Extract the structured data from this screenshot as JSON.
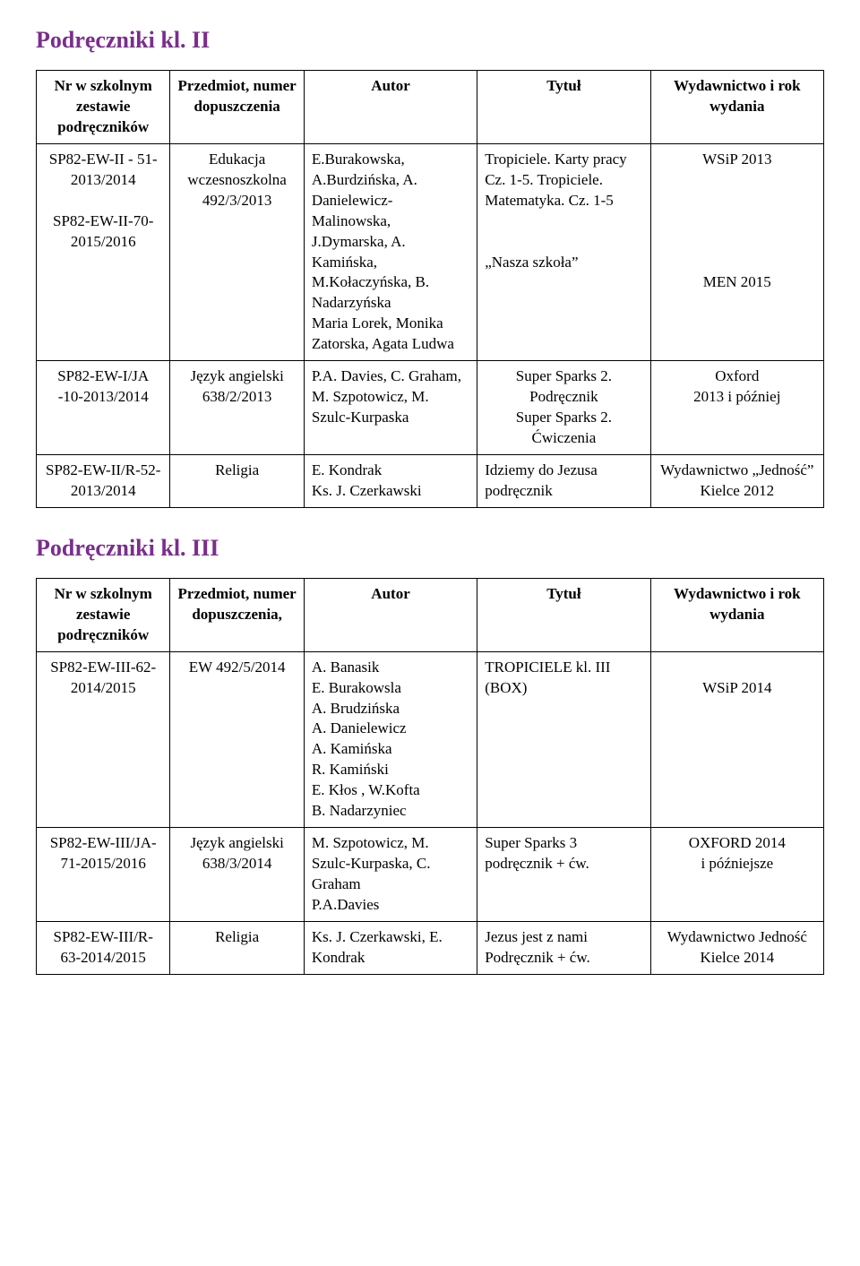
{
  "sections": [
    {
      "title": "Podręczniki kl. II",
      "headers": {
        "nr": "Nr w szkolnym zestawie podręczników",
        "przedmiot": "Przedmiot, numer dopuszczenia",
        "autor": "Autor",
        "tytul": "Tytuł",
        "wyd": "Wydawnictwo i rok wydania"
      },
      "rows": [
        {
          "nr": "SP82-EW-II - 51-2013/2014\n\nSP82-EW-II-70-2015/2016",
          "przedmiot": "Edukacja wczesnoszkolna 492/3/2013",
          "autor": "E.Burakowska, A.Burdzińska, A. Danielewicz-Malinowska, J.Dymarska, A. Kamińska, M.Kołaczyńska, B. Nadarzyńska\nMaria Lorek, Monika Zatorska, Agata Ludwa",
          "tytul": "Tropiciele. Karty pracy Cz. 1-5. Tropiciele. Matematyka. Cz. 1-5\n\n\n„Nasza szkoła”",
          "wyd": "WSiP 2013\n\n\n\n\n\nMEN 2015",
          "center_przed": true,
          "center_tytul_partial": false,
          "center_wyd": true
        },
        {
          "nr": "SP82-EW-I/JA -10-2013/2014",
          "przedmiot": "Język angielski 638/2/2013",
          "autor": "P.A. Davies, C. Graham, M. Szpotowicz, M. Szulc-Kurpaska",
          "tytul": "Super Sparks 2. Podręcznik\nSuper Sparks 2. Ćwiczenia",
          "wyd": "Oxford\n2013 i później",
          "center_przed": true,
          "center_tytul": true,
          "center_wyd": true
        },
        {
          "nr": "SP82-EW-II/R-52-2013/2014",
          "przedmiot": "Religia",
          "autor": "E. Kondrak\nKs. J. Czerkawski",
          "tytul": "Idziemy do Jezusa podręcznik",
          "wyd": "Wydawnictwo „Jedność” Kielce 2012",
          "center_przed": true,
          "center_wyd": true
        }
      ]
    },
    {
      "title": "Podręczniki kl. III",
      "headers": {
        "nr": "Nr w szkolnym zestawie podręczników",
        "przedmiot": "Przedmiot, numer dopuszczenia,",
        "autor": "Autor",
        "tytul": "Tytuł",
        "wyd": "Wydawnictwo i rok wydania"
      },
      "rows": [
        {
          "nr": "SP82-EW-III-62-2014/2015",
          "przedmiot": "EW 492/5/2014",
          "autor": "A. Banasik\nE. Burakowsla\nA. Brudzińska\nA. Danielewicz\nA. Kamińska\nR. Kamiński\nE. Kłos , W.Kofta\nB. Nadarzyniec",
          "tytul": "TROPICIELE  kl. III (BOX)",
          "wyd": "\nWSiP 2014",
          "center_przed": true,
          "center_wyd": true
        },
        {
          "nr": "SP82-EW-III/JA-71-2015/2016",
          "przedmiot": "Język angielski 638/3/2014",
          "autor": "M. Szpotowicz, M. Szulc-Kurpaska, C. Graham\nP.A.Davies",
          "tytul": "Super Sparks 3 podręcznik + ćw.",
          "wyd": "OXFORD 2014\ni późniejsze",
          "center_przed": true,
          "center_wyd": true
        },
        {
          "nr": "SP82-EW-III/R-63-2014/2015",
          "przedmiot": "Religia",
          "autor": "Ks. J. Czerkawski, E. Kondrak",
          "tytul": "Jezus jest z nami Podręcznik + ćw.",
          "wyd": "Wydawnictwo Jedność\nKielce  2014",
          "center_przed": true,
          "center_wyd": true
        }
      ]
    }
  ]
}
